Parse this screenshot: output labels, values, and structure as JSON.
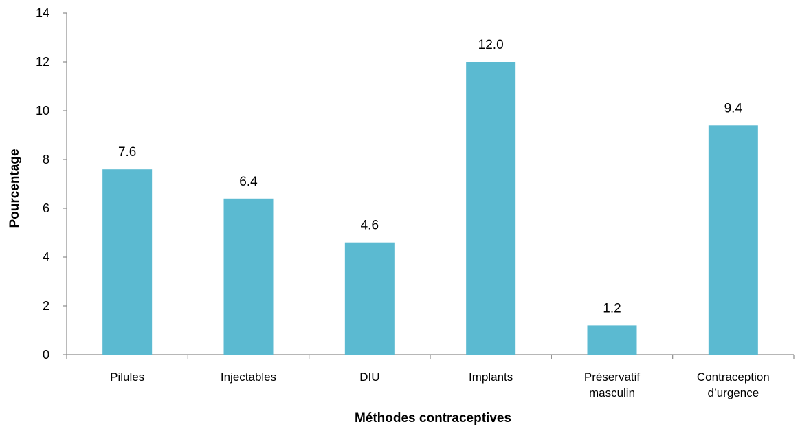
{
  "chart_data": {
    "type": "bar",
    "categories": [
      [
        "Pilules"
      ],
      [
        "Injectables"
      ],
      [
        "DIU"
      ],
      [
        "Implants"
      ],
      [
        "Préservatif",
        "masculin"
      ],
      [
        "Contraception",
        "d’urgence"
      ]
    ],
    "values": [
      7.6,
      6.4,
      4.6,
      12.0,
      1.2,
      9.4
    ],
    "data_labels": [
      "7.6",
      "6.4",
      "4.6",
      "12.0",
      "1.2",
      "9.4"
    ],
    "xlabel": "Méthodes contraceptives",
    "ylabel": "Pourcentage",
    "ylim": [
      0,
      14
    ],
    "yticks": [
      0,
      2,
      4,
      6,
      8,
      10,
      12,
      14
    ],
    "bar_color": "#5bbad1",
    "grid": false,
    "legend": "none"
  }
}
